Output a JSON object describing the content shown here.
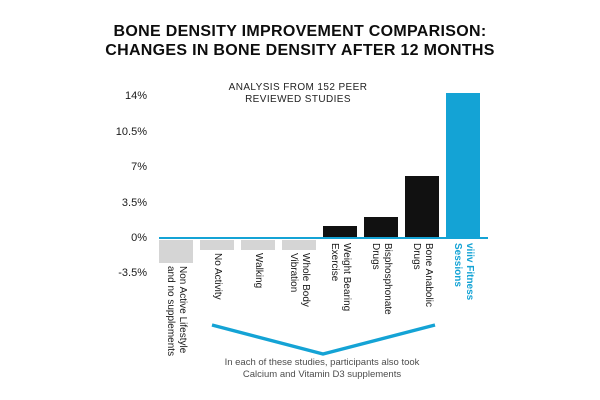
{
  "title": {
    "line1": "BONE DENSITY IMPROVEMENT COMPARISON:",
    "line2": "CHANGES IN BONE DENSITY AFTER 12 MONTHS"
  },
  "annotation": {
    "line1": "ANALYSIS FROM 152 PEER",
    "line2": "REVIEWED STUDIES"
  },
  "footnote": {
    "line1": "In each of these studies, participants also took",
    "line2": "Calcium and Vitamin D3 supplements"
  },
  "colors": {
    "positive_bar": "#111111",
    "negative_bar": "#d5d5d5",
    "highlight": "#14a3d5",
    "axis_line": "#14a3d5",
    "label_text": "#1a1a1a",
    "footnote_text": "#4d4d4d"
  },
  "chart_data": {
    "type": "bar",
    "title": "BONE DENSITY IMPROVEMENT COMPARISON: CHANGES IN BONE DENSITY AFTER 12 MONTHS",
    "xlabel": "",
    "ylabel": "",
    "ylim": [
      -3.5,
      14.5
    ],
    "grid": false,
    "legend": "none",
    "yticks": [
      {
        "label": "14%",
        "value": 14
      },
      {
        "label": "10.5%",
        "value": 10.5
      },
      {
        "label": "7%",
        "value": 7
      },
      {
        "label": "3.5%",
        "value": 3.5
      },
      {
        "label": "0%",
        "value": 0
      },
      {
        "label": "-3.5%",
        "value": -3.5
      }
    ],
    "categories": [
      [
        "Non Active Lifestyle",
        "and no supplements"
      ],
      [
        "No Activity"
      ],
      [
        "Walking"
      ],
      [
        "Whole Body",
        "Vibration"
      ],
      [
        "Weight Bearing",
        "Exercise"
      ],
      [
        "Bisphosphonate",
        "Drugs"
      ],
      [
        "Bone Anabolic",
        "Drugs"
      ],
      [
        "viiiv Fitness",
        "Sessions"
      ]
    ],
    "values": [
      -2.3,
      -1,
      -1,
      -1,
      1.2,
      2.1,
      6.1,
      14.3
    ],
    "bar_colors": [
      "negative",
      "negative",
      "negative",
      "negative",
      "positive",
      "positive",
      "positive",
      "highlight"
    ]
  }
}
